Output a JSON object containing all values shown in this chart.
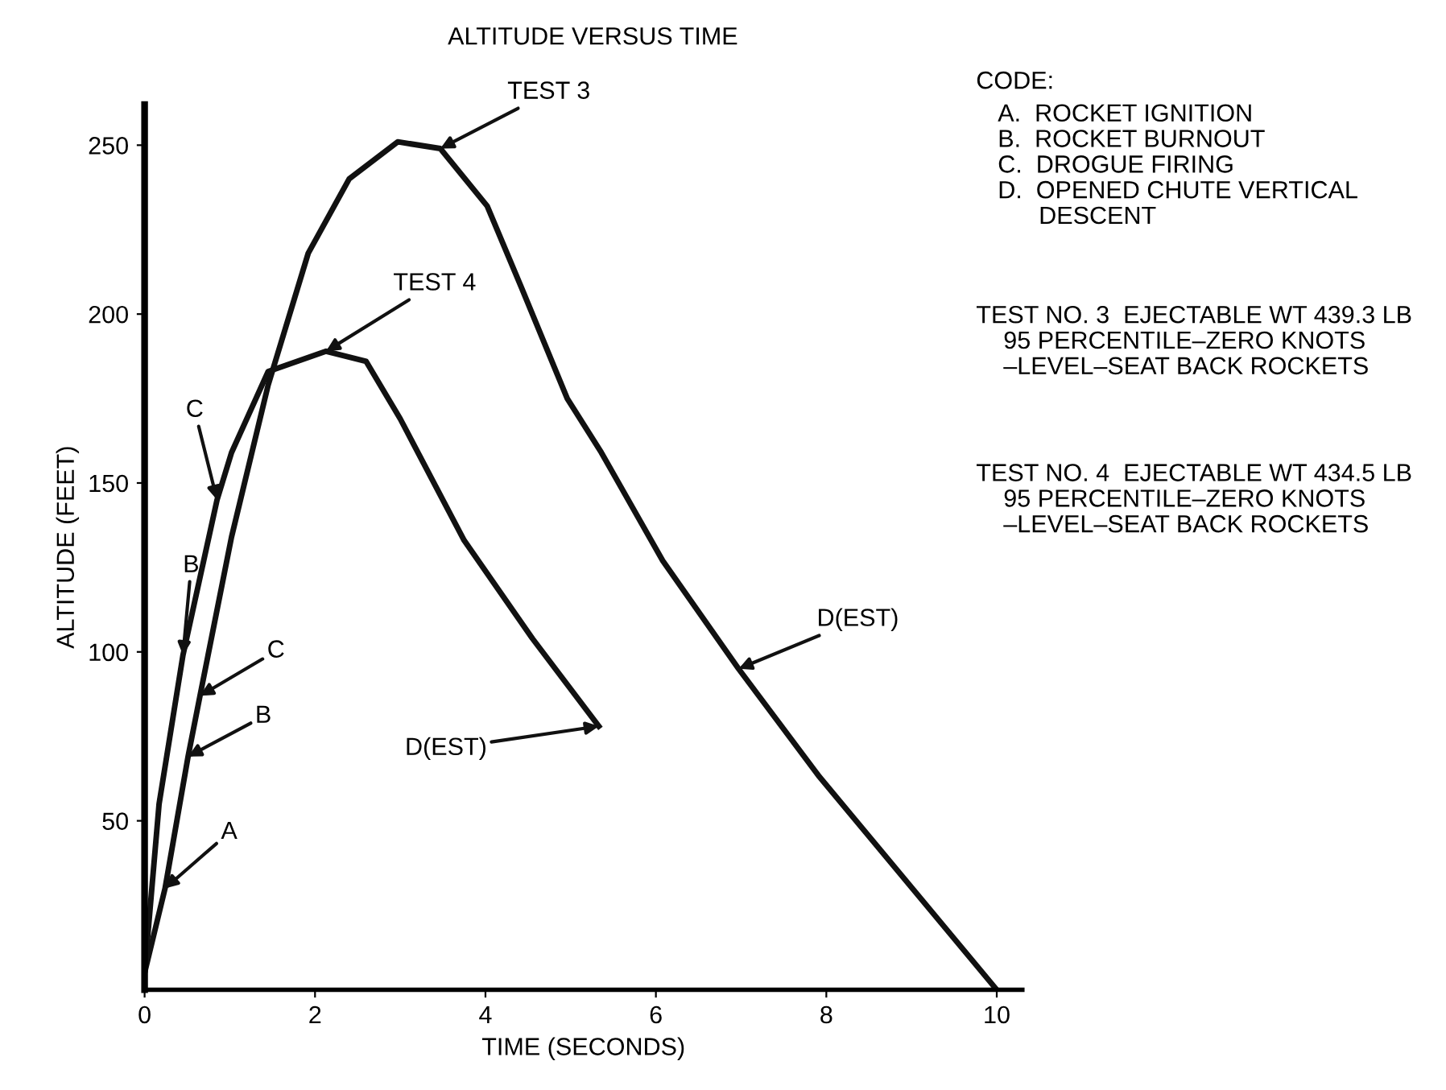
{
  "chart_data": {
    "type": "line",
    "title": "ALTITUDE VERSUS TIME",
    "xlabel": "TIME (SECONDS)",
    "ylabel": "ALTITUDE (FEET)",
    "series": [
      {
        "name": "TEST 3",
        "color": "#111111",
        "x": [
          0,
          0.24,
          0.51,
          0.65,
          1.02,
          1.45,
          1.92,
          2.4,
          2.97,
          3.47,
          4.02,
          4.42,
          4.96,
          5.36,
          6.08,
          6.97,
          7.92,
          10
        ],
        "values": [
          5,
          30,
          69,
          87,
          134,
          179,
          218,
          240,
          251,
          249,
          232,
          208,
          175,
          159,
          127,
          95,
          63,
          0
        ]
      },
      {
        "name": "TEST 4",
        "color": "#111111",
        "x": [
          0,
          0.17,
          0.45,
          0.85,
          1.02,
          1.45,
          2.13,
          2.6,
          3.0,
          3.75,
          4.55,
          5.33
        ],
        "values": [
          5,
          55,
          99,
          145,
          159,
          183,
          189,
          186,
          169,
          133,
          104,
          78
        ]
      }
    ],
    "xlim": [
      0,
      10.3
    ],
    "ylim": [
      0,
      262
    ],
    "xticks": [
      0,
      2,
      4,
      6,
      8,
      10
    ],
    "yticks": [
      50,
      100,
      150,
      200,
      250
    ],
    "grid": false,
    "legend": false,
    "line_style": "solid",
    "annotations": [
      {
        "text": "C",
        "x": 0.85,
        "y": 145
      },
      {
        "text": "B",
        "x": 0.45,
        "y": 99
      },
      {
        "text": "C",
        "x": 0.65,
        "y": 87
      },
      {
        "text": "B",
        "x": 0.51,
        "y": 69
      },
      {
        "text": "A",
        "x": 0.24,
        "y": 30
      },
      {
        "text": "D(EST)",
        "x": 5.33,
        "y": 78
      },
      {
        "text": "D(EST)",
        "x": 6.97,
        "y": 95
      },
      "CODE:",
      "A.  ROCKET IGNITION\nB.  ROCKET BURNOUT\nC.  DROGUE FIRING\nD.  OPENED CHUTE VERTICAL\n      DESCENT",
      "TEST NO. 3  EJECTABLE WT 439.3 LB\n    95 PERCENTILE–ZERO KNOTS\n    –LEVEL–SEAT BACK ROCKETS",
      "TEST NO. 4  EJECTABLE WT 434.5 LB\n    95 PERCENTILE–ZERO KNOTS\n    –LEVEL–SEAT BACK ROCKETS"
    ]
  }
}
